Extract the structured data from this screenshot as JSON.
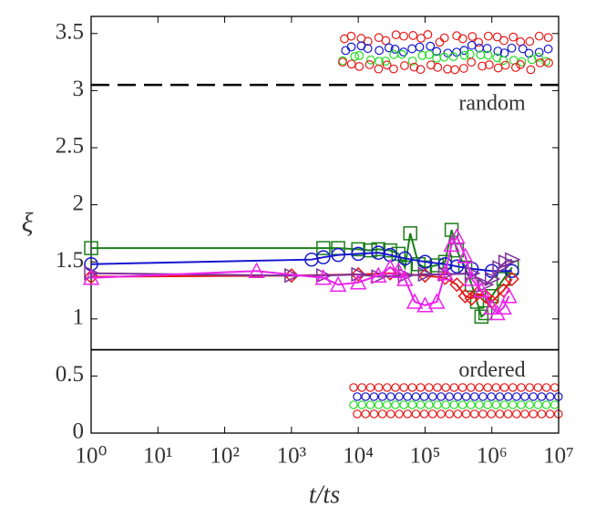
{
  "chart_data": {
    "type": "line",
    "xlabel": "t/ts",
    "ylabel": "ξ",
    "xlog": true,
    "xlim": [
      1,
      10000000
    ],
    "xticks": [
      {
        "value": 1,
        "label": "10⁰"
      },
      {
        "value": 10,
        "label": "10¹"
      },
      {
        "value": 100,
        "label": "10²"
      },
      {
        "value": 1000,
        "label": "10³"
      },
      {
        "value": 10000,
        "label": "10⁴"
      },
      {
        "value": 100000,
        "label": "10⁵"
      },
      {
        "value": 1000000,
        "label": "10⁶"
      },
      {
        "value": 10000000,
        "label": "10⁷"
      }
    ],
    "ylim": [
      0,
      3.65
    ],
    "yticks": [
      0,
      0.5,
      1,
      1.5,
      2,
      2.5,
      3,
      3.5
    ],
    "reference_lines": [
      {
        "value": 3.05,
        "label": "random",
        "style": "dashed"
      },
      {
        "value": 0.73,
        "label": "ordered",
        "style": "solid"
      }
    ],
    "series": [
      {
        "color": "#1a7f1a",
        "marker": "square",
        "x": [
          1,
          3000,
          5000,
          10000,
          15000,
          20000,
          30000,
          40000,
          50000,
          60000,
          80000,
          100000,
          150000,
          200000,
          250000,
          300000,
          400000,
          500000,
          600000,
          700000,
          800000,
          1000000,
          1500000,
          2000000
        ],
        "values": [
          1.62,
          1.62,
          1.62,
          1.61,
          1.6,
          1.61,
          1.6,
          1.57,
          1.45,
          1.75,
          1.48,
          1.45,
          1.47,
          1.5,
          1.78,
          1.6,
          1.45,
          1.3,
          1.15,
          1.02,
          1.05,
          1.2,
          1.35,
          1.45
        ]
      },
      {
        "color": "#1515d0",
        "marker": "circle",
        "x": [
          1,
          2000,
          3000,
          5000,
          10000,
          20000,
          30000,
          50000,
          100000,
          200000,
          300000,
          500000,
          1000000,
          2000000
        ],
        "values": [
          1.48,
          1.52,
          1.54,
          1.56,
          1.57,
          1.58,
          1.56,
          1.53,
          1.5,
          1.48,
          1.46,
          1.44,
          1.42,
          1.42
        ]
      },
      {
        "color": "#e81818",
        "marker": "diamond",
        "x": [
          1,
          1000,
          10000,
          30000,
          100000,
          200000,
          300000,
          400000,
          500000,
          600000,
          800000,
          1000000,
          1500000,
          2000000
        ],
        "values": [
          1.37,
          1.38,
          1.39,
          1.4,
          1.38,
          1.36,
          1.3,
          1.2,
          1.18,
          1.22,
          1.2,
          1.15,
          1.25,
          1.35
        ]
      },
      {
        "color": "#7e3399",
        "marker": "triangle-right",
        "x": [
          1,
          1000,
          3000,
          10000,
          20000,
          50000,
          100000,
          200000,
          500000,
          800000,
          1000000,
          1300000,
          1600000,
          2000000
        ],
        "values": [
          1.4,
          1.38,
          1.38,
          1.39,
          1.37,
          1.38,
          1.39,
          1.39,
          1.4,
          1.3,
          1.35,
          1.45,
          1.5,
          1.52
        ]
      },
      {
        "color": "#ee22ee",
        "marker": "triangle",
        "x": [
          1,
          300,
          3000,
          5000,
          10000,
          20000,
          30000,
          40000,
          50000,
          70000,
          100000,
          150000,
          200000,
          250000,
          300000,
          400000,
          500000,
          700000,
          1000000,
          1200000,
          1500000,
          1800000
        ],
        "values": [
          1.36,
          1.42,
          1.36,
          1.3,
          1.32,
          1.38,
          1.45,
          1.42,
          1.35,
          1.15,
          1.12,
          1.15,
          1.4,
          1.65,
          1.72,
          1.55,
          1.35,
          1.25,
          1.1,
          1.05,
          1.1,
          1.2
        ]
      }
    ]
  }
}
